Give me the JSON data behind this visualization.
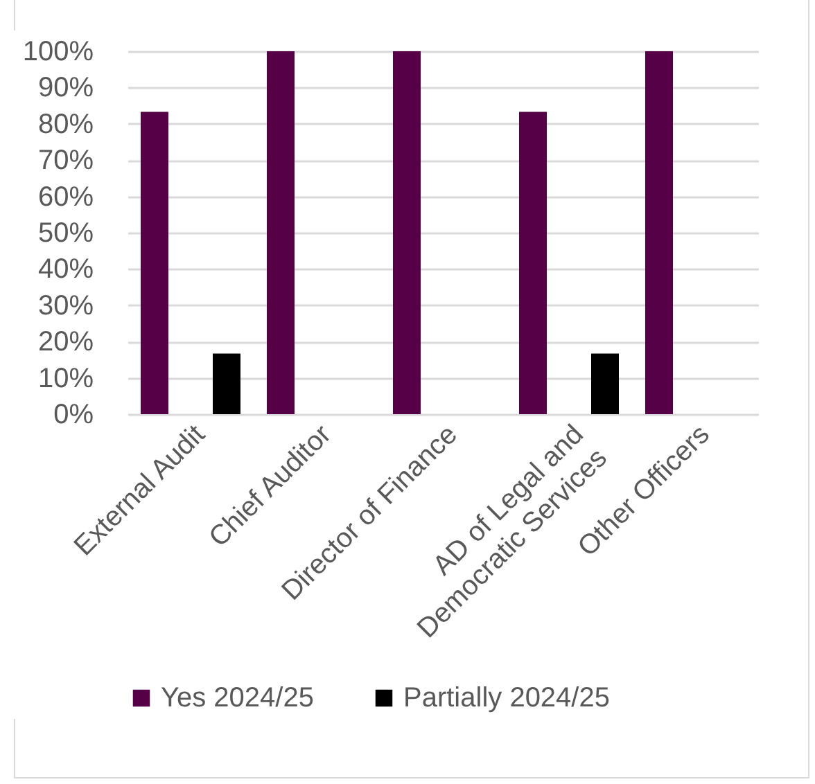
{
  "chart_data": {
    "type": "bar",
    "categories": [
      "External Audit",
      "Chief Auditor",
      "Director of Finance",
      "AD of Legal and Democratic Services",
      "Other Officers"
    ],
    "series": [
      {
        "name": "Yes 2024/25",
        "color": "#560047",
        "values": [
          83.3,
          100,
          100,
          83.3,
          100
        ]
      },
      {
        "name": "Partially 2024/25",
        "color": "#000000",
        "values": [
          16.7,
          0,
          0,
          16.7,
          0
        ]
      }
    ],
    "ylim": [
      0,
      100
    ],
    "yticks": [
      {
        "value": 0,
        "label": "0%"
      },
      {
        "value": 10,
        "label": "10%"
      },
      {
        "value": 20,
        "label": "20%"
      },
      {
        "value": 30,
        "label": "30%"
      },
      {
        "value": 40,
        "label": "40%"
      },
      {
        "value": 50,
        "label": "50%"
      },
      {
        "value": 60,
        "label": "60%"
      },
      {
        "value": 70,
        "label": "70%"
      },
      {
        "value": 80,
        "label": "80%"
      },
      {
        "value": 90,
        "label": "90%"
      },
      {
        "value": 100,
        "label": "100%"
      }
    ],
    "grid": "y",
    "legend": "bottom"
  }
}
